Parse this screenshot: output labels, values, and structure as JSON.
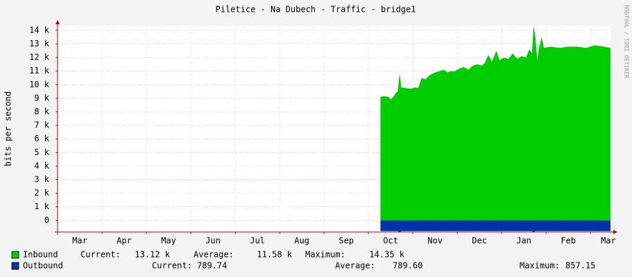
{
  "chart_data": {
    "type": "area",
    "title": "Piletice - Na Dubech - Traffic - bridge1",
    "y_label": "bits per second",
    "watermark": "RRDTOOL / TOBI OETIKER",
    "categories": [
      "Mar",
      "Apr",
      "May",
      "Jun",
      "Jul",
      "Aug",
      "Sep",
      "Oct",
      "Nov",
      "Dec",
      "Jan",
      "Feb",
      "Mar"
    ],
    "xlim": [
      0,
      12.45
    ],
    "ylim": [
      -850,
      14350
    ],
    "yticks": [
      0,
      {
        "value": 1000,
        "label": "1 k"
      },
      {
        "value": 2000,
        "label": "2 k"
      },
      {
        "value": 3000,
        "label": "3 k"
      },
      {
        "value": 4000,
        "label": "4 k"
      },
      {
        "value": 5000,
        "label": "5 k"
      },
      {
        "value": 6000,
        "label": "6 k"
      },
      {
        "value": 7000,
        "label": "7 k"
      },
      {
        "value": 8000,
        "label": "8 k"
      },
      {
        "value": 9000,
        "label": "9 k"
      },
      {
        "value": 10000,
        "label": "10 k"
      },
      {
        "value": 11000,
        "label": "11 k"
      },
      {
        "value": 12000,
        "label": "12 k"
      },
      {
        "value": 13000,
        "label": "13 k"
      },
      {
        "value": 14000,
        "label": "14 k"
      }
    ],
    "grid": true,
    "stat_labels": [
      "Current:",
      "Average:",
      "Maximum:"
    ],
    "x": [
      7.27,
      7.35,
      7.45,
      7.5,
      7.55,
      7.62,
      7.66,
      7.7,
      7.74,
      7.85,
      7.95,
      8.05,
      8.12,
      8.2,
      8.28,
      8.38,
      8.5,
      8.6,
      8.7,
      8.78,
      8.85,
      8.95,
      9.05,
      9.15,
      9.25,
      9.35,
      9.45,
      9.55,
      9.62,
      9.7,
      9.78,
      9.88,
      9.95,
      10.05,
      10.15,
      10.25,
      10.35,
      10.45,
      10.55,
      10.62,
      10.68,
      10.72,
      10.76,
      10.8,
      10.84,
      10.9,
      10.95,
      11.1,
      11.3,
      11.5,
      11.7,
      11.9,
      12.1,
      12.3,
      12.45
    ],
    "series": [
      {
        "name": "Inbound",
        "color": "#00cc00",
        "stats": [
          "13.12 k",
          "11.58 k",
          "14.35 k"
        ],
        "values": [
          9100,
          9150,
          9100,
          8900,
          9050,
          9400,
          9500,
          10800,
          9800,
          9750,
          9700,
          9800,
          9750,
          10500,
          10400,
          10700,
          10900,
          11000,
          11100,
          10900,
          11000,
          11000,
          11200,
          11300,
          11100,
          11400,
          11500,
          11400,
          11600,
          12200,
          11700,
          12500,
          11800,
          12000,
          11900,
          12300,
          11900,
          12100,
          12000,
          12600,
          12300,
          14350,
          13500,
          11800,
          12700,
          13500,
          12700,
          12800,
          12700,
          12800,
          12800,
          12700,
          12900,
          12800,
          12700
        ]
      },
      {
        "name": "Outbound",
        "color": "#0033aa",
        "stats": [
          "789.74",
          "789.60",
          "857.15"
        ],
        "values": [
          -790,
          -790,
          -790,
          -790,
          -790,
          -790,
          -790,
          -857,
          -790,
          -790,
          -790,
          -790,
          -790,
          -790,
          -790,
          -790,
          -790,
          -790,
          -790,
          -790,
          -790,
          -790,
          -790,
          -790,
          -790,
          -790,
          -790,
          -790,
          -790,
          -790,
          -790,
          -790,
          -790,
          -790,
          -790,
          -790,
          -790,
          -790,
          -790,
          -790,
          -790,
          -857,
          -790,
          -790,
          -790,
          -790,
          -790,
          -790,
          -790,
          -790,
          -790,
          -790,
          -790,
          -790,
          -790
        ]
      }
    ]
  }
}
